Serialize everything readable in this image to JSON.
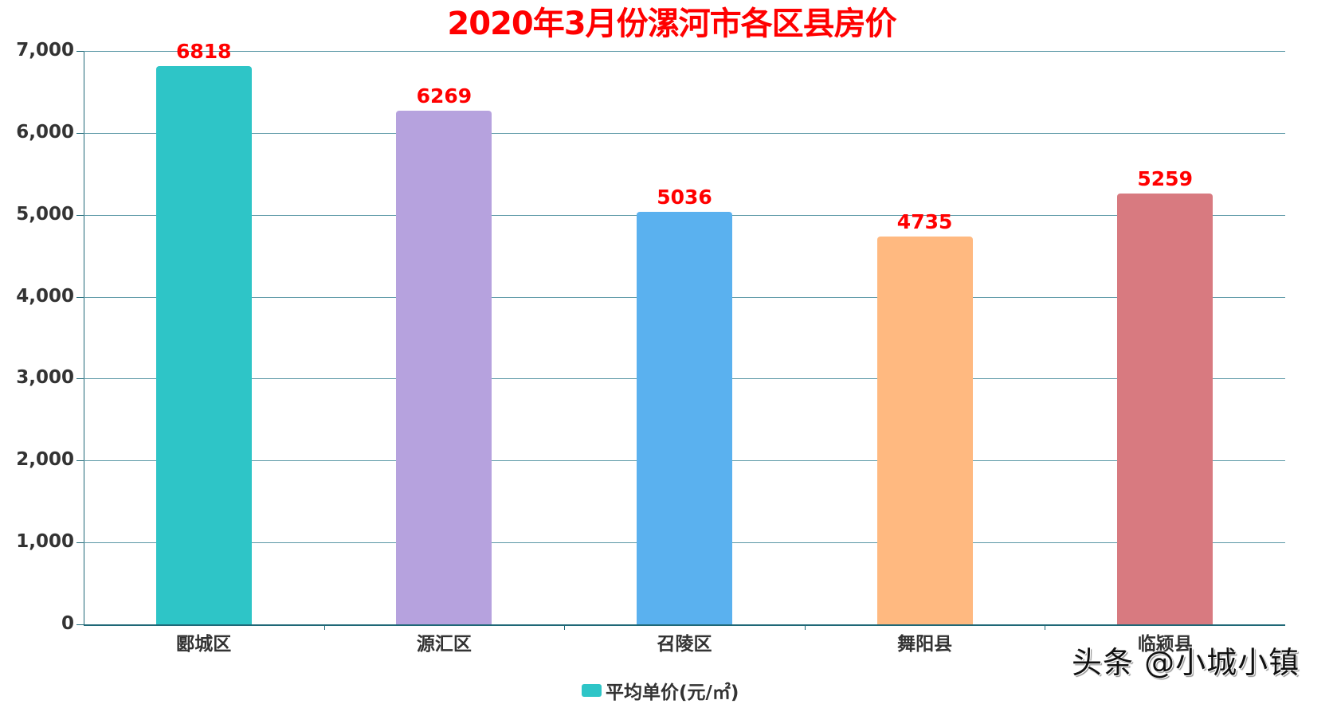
{
  "chart_data": {
    "type": "bar",
    "title": "2020年3月份漯河市各区县房价",
    "categories": [
      "郾城区",
      "源汇区",
      "召陵区",
      "舞阳县",
      "临颍县"
    ],
    "series": [
      {
        "name": "平均单价(元/㎡)",
        "values": [
          6818,
          6269,
          5036,
          4735,
          5259
        ]
      }
    ],
    "colors": [
      "#2ec5c7",
      "#b6a2de",
      "#5ab1ef",
      "#ffb980",
      "#d87a80"
    ],
    "xlabel": "",
    "ylabel": "",
    "ylim": [
      0,
      7000
    ],
    "yticks": [
      "0",
      "1,000",
      "2,000",
      "3,000",
      "4,000",
      "5,000",
      "6,000",
      "7,000"
    ],
    "grid": true,
    "legend_position": "bottom",
    "data_label_color": "#ff0000"
  },
  "title": "2020年3月份漯河市各区县房价",
  "bars": [
    {
      "category": "郾城区",
      "value": "6818",
      "color": "#2ec5c7"
    },
    {
      "category": "源汇区",
      "value": "6269",
      "color": "#b6a2de"
    },
    {
      "category": "召陵区",
      "value": "5036",
      "color": "#5ab1ef"
    },
    {
      "category": "舞阳县",
      "value": "4735",
      "color": "#ffb980"
    },
    {
      "category": "临颍县",
      "value": "5259",
      "color": "#d87a80"
    }
  ],
  "yaxis": {
    "labels": [
      "0",
      "1,000",
      "2,000",
      "3,000",
      "4,000",
      "5,000",
      "6,000",
      "7,000"
    ]
  },
  "legend": {
    "label": "平均单价(元/㎡)",
    "color": "#2ec5c7"
  },
  "watermark": "头条 @小城小镇"
}
